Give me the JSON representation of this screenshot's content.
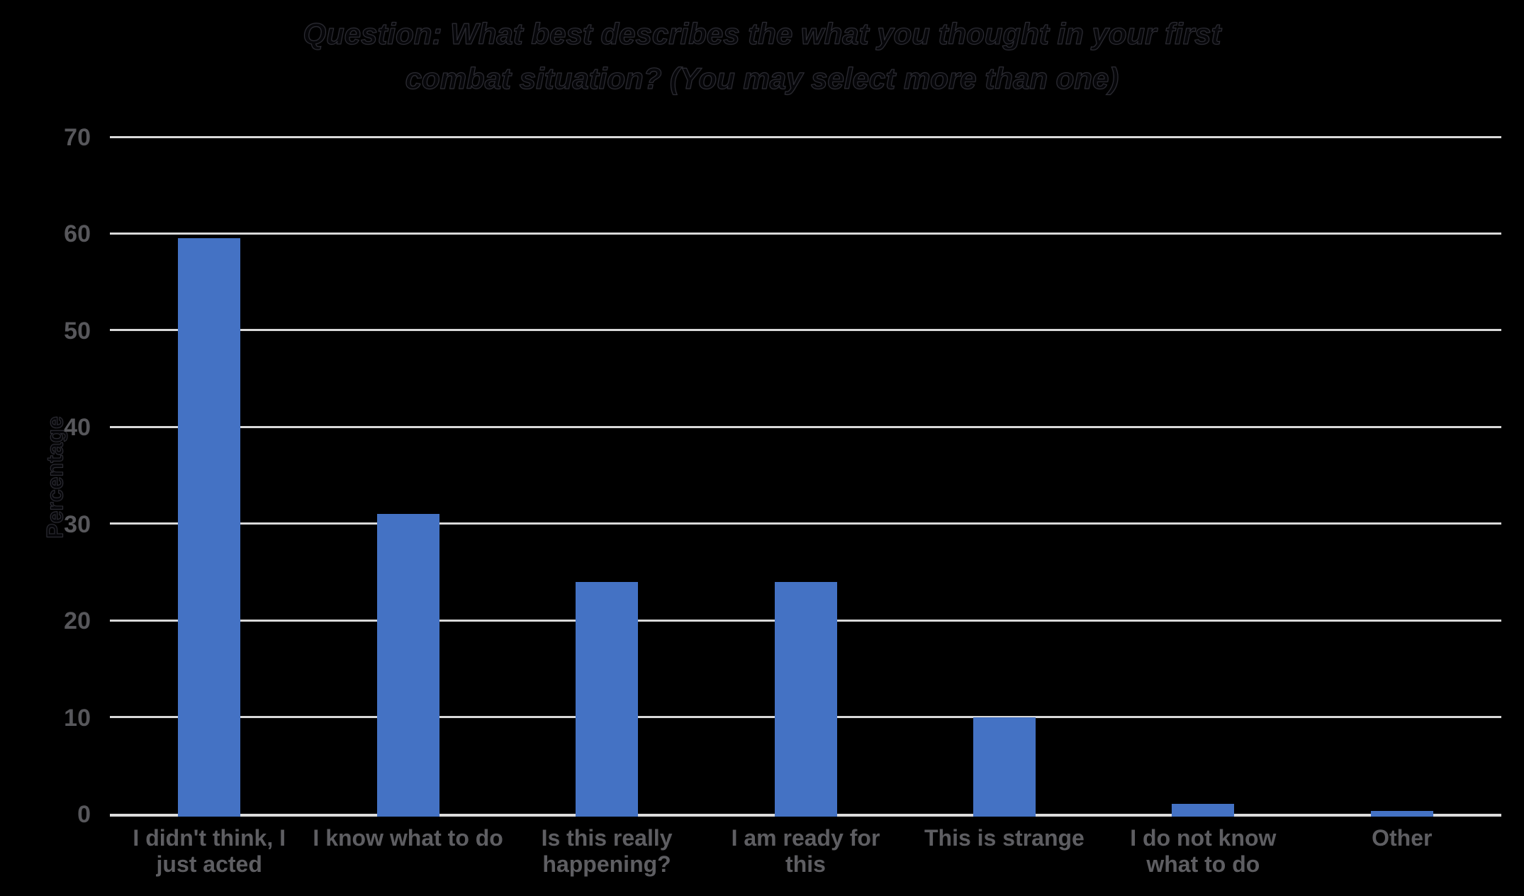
{
  "title": {
    "line1": "Question: What best describes the what you thought in your first",
    "line2": "combat situation? (You may select more than one)"
  },
  "chart_data": {
    "type": "bar",
    "title": "Question: What best describes the what you thought in your first combat situation? (You may select more than one)",
    "categories": [
      "I didn't think, I just acted",
      "I know what to do",
      "Is this really happening?",
      "I am ready for this",
      "This is strange",
      "I do not know what to do",
      "Other"
    ],
    "categories_wrapped": [
      "I didn't think, I\njust acted",
      "I know what to do",
      "Is this really\nhappening?",
      "I am ready for\nthis",
      "This is strange",
      "I do not know\nwhat to do",
      "Other"
    ],
    "values": [
      59.5,
      31,
      24,
      24,
      10,
      1,
      0.3
    ],
    "xlabel": "",
    "ylabel": "Percentage",
    "ylim": [
      0,
      70
    ],
    "yticks": [
      0,
      10,
      20,
      30,
      40,
      50,
      60,
      70
    ],
    "grid": true,
    "legend": false,
    "colors": {
      "background": "#000000",
      "bar": "#4472C4",
      "gridline": "#D9D9D9",
      "axis_line": "#DCDCDC",
      "tick_label": "#57575B",
      "category_label": "#5E5E62"
    }
  }
}
